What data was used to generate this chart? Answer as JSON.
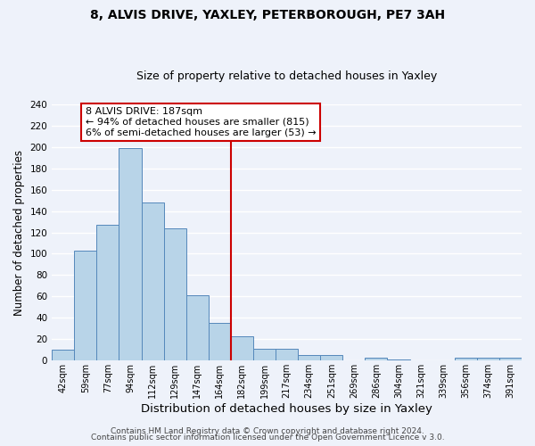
{
  "title1": "8, ALVIS DRIVE, YAXLEY, PETERBOROUGH, PE7 3AH",
  "title2": "Size of property relative to detached houses in Yaxley",
  "xlabel": "Distribution of detached houses by size in Yaxley",
  "ylabel": "Number of detached properties",
  "bin_labels": [
    "42sqm",
    "59sqm",
    "77sqm",
    "94sqm",
    "112sqm",
    "129sqm",
    "147sqm",
    "164sqm",
    "182sqm",
    "199sqm",
    "217sqm",
    "234sqm",
    "251sqm",
    "269sqm",
    "286sqm",
    "304sqm",
    "321sqm",
    "339sqm",
    "356sqm",
    "374sqm",
    "391sqm"
  ],
  "bar_values": [
    10,
    103,
    127,
    199,
    148,
    124,
    61,
    35,
    23,
    11,
    11,
    5,
    5,
    0,
    3,
    1,
    0,
    0,
    3,
    3,
    3
  ],
  "bar_color": "#b8d4e8",
  "bar_edge_color": "#5588bb",
  "vline_x": 8.0,
  "vline_color": "#cc0000",
  "annotation_line1": "8 ALVIS DRIVE: 187sqm",
  "annotation_line2": "← 94% of detached houses are smaller (815)",
  "annotation_line3": "6% of semi-detached houses are larger (53) →",
  "annotation_box_color": "#cc0000",
  "footer1": "Contains HM Land Registry data © Crown copyright and database right 2024.",
  "footer2": "Contains public sector information licensed under the Open Government Licence v 3.0.",
  "ylim": [
    0,
    240
  ],
  "yticks": [
    0,
    20,
    40,
    60,
    80,
    100,
    120,
    140,
    160,
    180,
    200,
    220,
    240
  ],
  "bg_color": "#eef2fa",
  "grid_color": "#ffffff",
  "title1_fontsize": 10,
  "title2_fontsize": 9,
  "xlabel_fontsize": 9.5,
  "ylabel_fontsize": 8.5,
  "footer_fontsize": 6.5,
  "tick_fontsize": 7,
  "ytick_fontsize": 7.5,
  "annot_fontsize": 8
}
